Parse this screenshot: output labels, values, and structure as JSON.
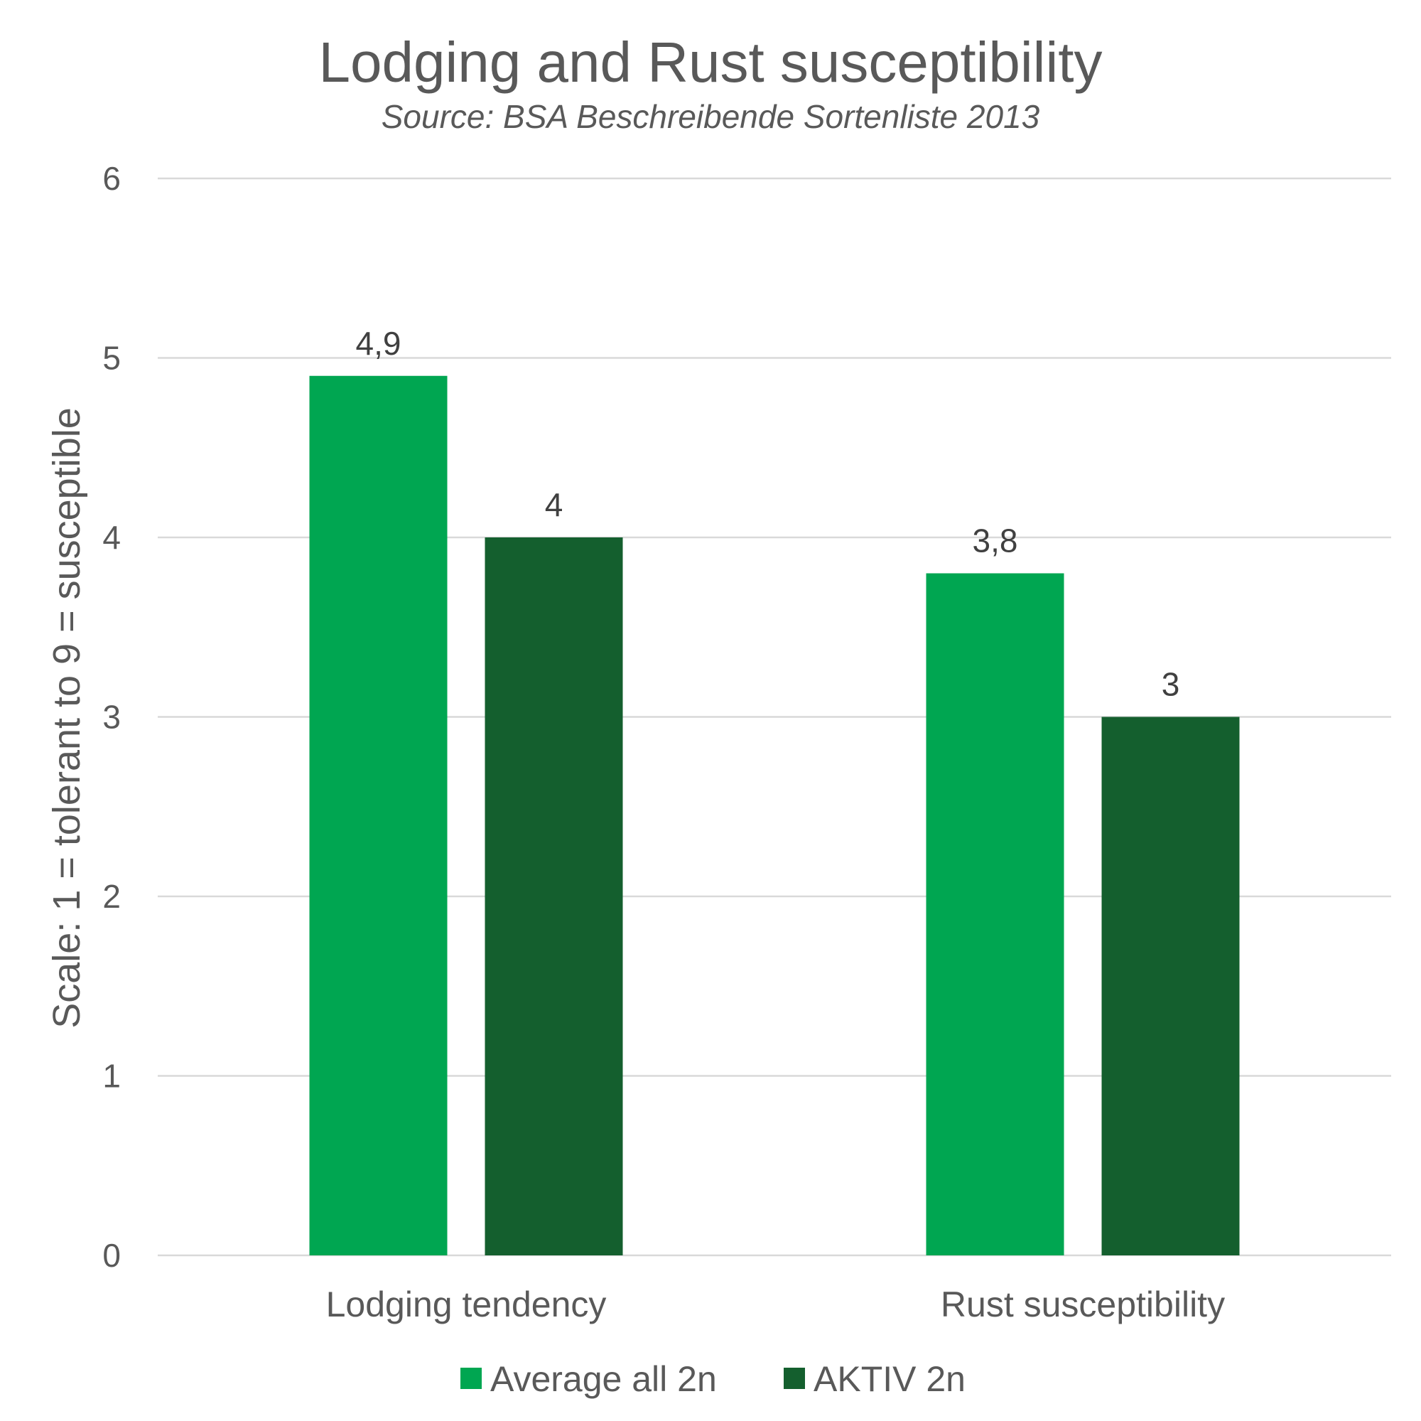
{
  "chart_data": {
    "type": "bar",
    "title": "Lodging and Rust susceptibility",
    "subtitle": "Source: BSA Beschreibende Sortenliste 2013",
    "ylabel": "Scale: 1 = tolerant to 9 = susceptible",
    "xlabel": "",
    "categories": [
      "Lodging tendency",
      "Rust susceptibility"
    ],
    "series": [
      {
        "name": "Average all 2n",
        "values": [
          4.9,
          3.8
        ],
        "labels": [
          "4,9",
          "3,8"
        ],
        "color": "#00a651"
      },
      {
        "name": "AKTIV 2n",
        "values": [
          4,
          3
        ],
        "labels": [
          "4",
          "3"
        ],
        "color": "#145f2e"
      }
    ],
    "ylim": [
      0,
      6
    ],
    "yticks": [
      "0",
      "1",
      "2",
      "3",
      "4",
      "5",
      "6"
    ],
    "grid": true,
    "legend_position": "bottom"
  }
}
